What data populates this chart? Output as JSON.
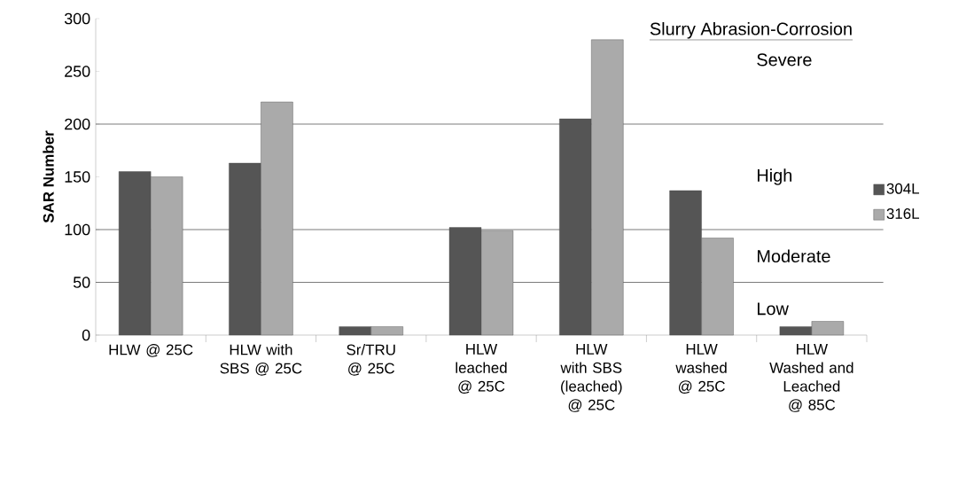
{
  "chart_data": {
    "type": "bar",
    "title": "Slurry Abrasion-Corrosion",
    "ylabel": "SAR Number",
    "categories": [
      "HLW @ 25C",
      "HLW with SBS @ 25C",
      "Sr/TRU @ 25C",
      "HLW leached @ 25C",
      "HLW with SBS (leached) @ 25C",
      "HLW washed @ 25C",
      "HLW Washed and Leached @ 85C"
    ],
    "series": [
      {
        "name": "304L",
        "color": "#555555",
        "values": [
          155,
          163,
          8,
          102,
          205,
          137,
          8
        ]
      },
      {
        "name": "316L",
        "color": "#aaaaaa",
        "values": [
          150,
          221,
          8,
          99,
          280,
          92,
          13
        ]
      }
    ],
    "ylim": [
      0,
      300
    ],
    "yticks": [
      0,
      50,
      100,
      150,
      200,
      250,
      300
    ],
    "legend": "right",
    "ref_lines": [
      {
        "axis": "y",
        "value": 50
      },
      {
        "axis": "y",
        "value": 100
      },
      {
        "axis": "y",
        "value": 200
      }
    ],
    "annotations": [
      "Severe",
      "High",
      "Moderate",
      "Low"
    ]
  }
}
